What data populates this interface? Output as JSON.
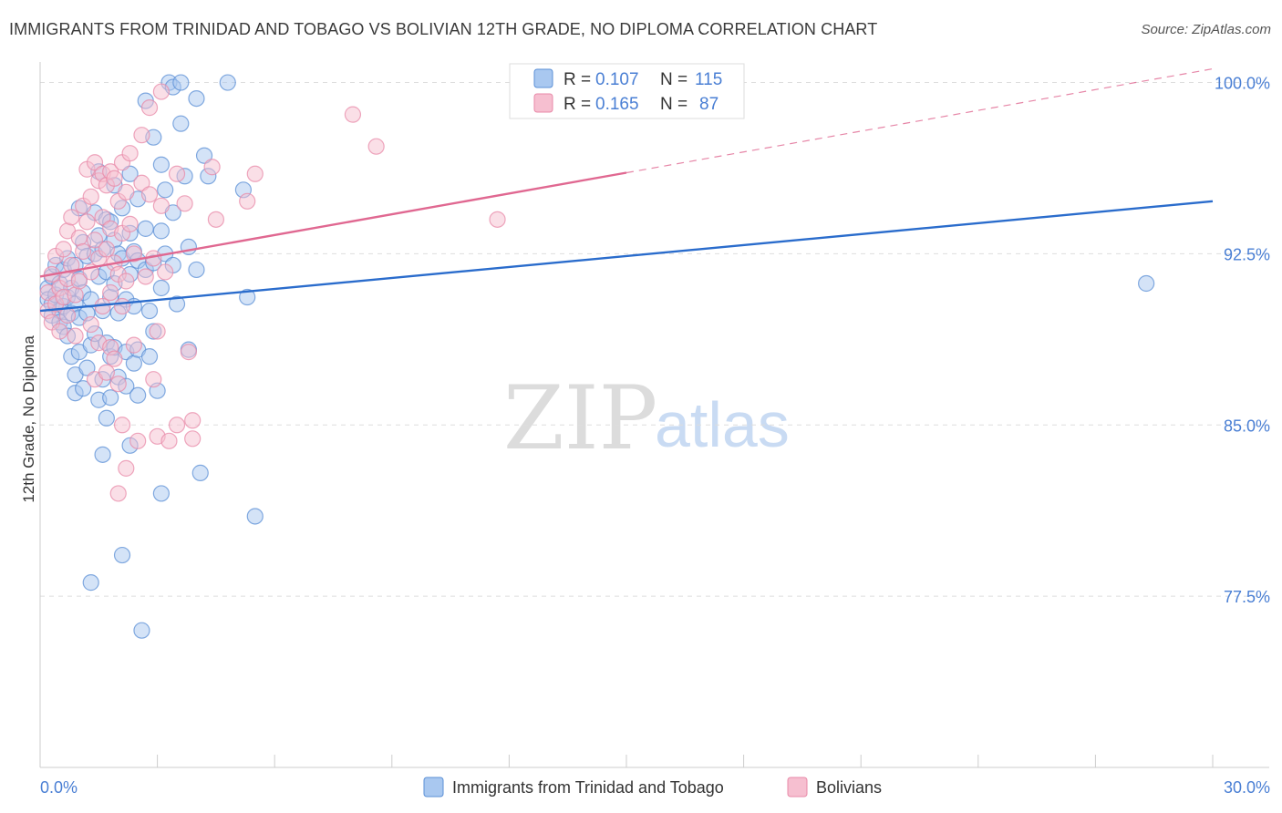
{
  "title": "IMMIGRANTS FROM TRINIDAD AND TOBAGO VS BOLIVIAN 12TH GRADE, NO DIPLOMA CORRELATION CHART",
  "source": "Source: ZipAtlas.com",
  "watermark": {
    "zip": "ZIP",
    "atlas": "atlas"
  },
  "colors": {
    "blue_fill": "#a9c8f0",
    "blue_stroke": "#5b8fd6",
    "blue_line": "#2a6ccc",
    "pink_fill": "#f6bfd0",
    "pink_stroke": "#e88aa8",
    "pink_line": "#e06891",
    "grid": "#dddddd",
    "tick_label": "#4a7fd4"
  },
  "legend": {
    "rows": [
      {
        "r_label": "R =",
        "r_value": "0.107",
        "n_label": "N =",
        "n_value": "115"
      },
      {
        "r_label": "R =",
        "r_value": "0.165",
        "n_label": "N =",
        "n_value": "87"
      }
    ]
  },
  "chart_data": {
    "type": "scatter",
    "title": "IMMIGRANTS FROM TRINIDAD AND TOBAGO VS BOLIVIAN 12TH GRADE, NO DIPLOMA CORRELATION CHART",
    "xlabel": "",
    "ylabel": "12th Grade, No Diploma",
    "xlim": [
      0,
      30
    ],
    "ylim": [
      70,
      101.3
    ],
    "x_tick_labels": [
      "0.0%",
      "30.0%"
    ],
    "y_ticks": [
      77.5,
      85.0,
      92.5,
      100.0
    ],
    "y_tick_labels": [
      "77.5%",
      "85.0%",
      "92.5%",
      "100.0%"
    ],
    "grid": true,
    "legend_position": "top-center",
    "series": [
      {
        "name": "Immigrants from Trinidad and Tobago",
        "color": "blue",
        "R": 0.107,
        "N": 115,
        "trend": {
          "x": [
            0,
            30
          ],
          "y": [
            90.0,
            94.8
          ],
          "dashed_from": null
        },
        "points": [
          [
            0.2,
            91.0
          ],
          [
            0.2,
            90.5
          ],
          [
            0.3,
            91.5
          ],
          [
            0.3,
            90.3
          ],
          [
            0.3,
            89.8
          ],
          [
            0.4,
            92.0
          ],
          [
            0.4,
            90.7
          ],
          [
            0.5,
            91.2
          ],
          [
            0.5,
            90.0
          ],
          [
            0.5,
            89.5
          ],
          [
            0.6,
            91.8
          ],
          [
            0.6,
            90.2
          ],
          [
            0.6,
            89.3
          ],
          [
            0.7,
            92.3
          ],
          [
            0.7,
            90.6
          ],
          [
            0.7,
            88.9
          ],
          [
            0.8,
            91.0
          ],
          [
            0.8,
            89.9
          ],
          [
            0.8,
            88.0
          ],
          [
            0.9,
            92.0
          ],
          [
            0.9,
            90.3
          ],
          [
            0.9,
            87.2
          ],
          [
            0.9,
            86.4
          ],
          [
            1.0,
            94.5
          ],
          [
            1.0,
            91.4
          ],
          [
            1.0,
            89.7
          ],
          [
            1.0,
            88.2
          ],
          [
            1.1,
            93.0
          ],
          [
            1.1,
            90.8
          ],
          [
            1.1,
            86.6
          ],
          [
            1.2,
            92.4
          ],
          [
            1.2,
            89.9
          ],
          [
            1.2,
            87.5
          ],
          [
            1.3,
            90.5
          ],
          [
            1.3,
            88.5
          ],
          [
            1.3,
            78.1
          ],
          [
            1.4,
            94.3
          ],
          [
            1.4,
            92.5
          ],
          [
            1.4,
            89.0
          ],
          [
            1.5,
            96.1
          ],
          [
            1.5,
            93.3
          ],
          [
            1.5,
            91.5
          ],
          [
            1.5,
            86.1
          ],
          [
            1.6,
            92.7
          ],
          [
            1.6,
            90.0
          ],
          [
            1.6,
            87.0
          ],
          [
            1.6,
            83.7
          ],
          [
            1.7,
            94.0
          ],
          [
            1.7,
            91.7
          ],
          [
            1.7,
            88.6
          ],
          [
            1.7,
            85.3
          ],
          [
            1.8,
            93.9
          ],
          [
            1.8,
            90.6
          ],
          [
            1.8,
            88.0
          ],
          [
            1.8,
            86.2
          ],
          [
            1.9,
            95.5
          ],
          [
            1.9,
            93.1
          ],
          [
            1.9,
            91.2
          ],
          [
            1.9,
            88.4
          ],
          [
            2.0,
            92.5
          ],
          [
            2.0,
            89.9
          ],
          [
            2.0,
            87.1
          ],
          [
            2.1,
            94.5
          ],
          [
            2.1,
            92.3
          ],
          [
            2.1,
            79.3
          ],
          [
            2.2,
            90.5
          ],
          [
            2.2,
            88.2
          ],
          [
            2.2,
            86.7
          ],
          [
            2.3,
            96.0
          ],
          [
            2.3,
            93.4
          ],
          [
            2.3,
            91.6
          ],
          [
            2.3,
            84.1
          ],
          [
            2.4,
            92.6
          ],
          [
            2.4,
            90.2
          ],
          [
            2.4,
            87.7
          ],
          [
            2.5,
            94.9
          ],
          [
            2.5,
            92.2
          ],
          [
            2.5,
            88.3
          ],
          [
            2.5,
            86.3
          ],
          [
            2.6,
            76.0
          ],
          [
            2.7,
            99.2
          ],
          [
            2.7,
            93.6
          ],
          [
            2.7,
            91.8
          ],
          [
            2.8,
            90.0
          ],
          [
            2.8,
            88.0
          ],
          [
            2.9,
            97.6
          ],
          [
            2.9,
            92.1
          ],
          [
            2.9,
            89.1
          ],
          [
            3.0,
            86.5
          ],
          [
            3.1,
            96.4
          ],
          [
            3.1,
            93.5
          ],
          [
            3.1,
            91.0
          ],
          [
            3.1,
            82.0
          ],
          [
            3.2,
            95.3
          ],
          [
            3.2,
            92.5
          ],
          [
            3.3,
            100.0
          ],
          [
            3.4,
            99.8
          ],
          [
            3.4,
            94.3
          ],
          [
            3.4,
            92.0
          ],
          [
            3.5,
            90.3
          ],
          [
            3.6,
            100.0
          ],
          [
            3.6,
            98.2
          ],
          [
            3.7,
            95.9
          ],
          [
            3.8,
            92.8
          ],
          [
            3.8,
            88.3
          ],
          [
            4.0,
            99.3
          ],
          [
            4.0,
            91.8
          ],
          [
            4.2,
            96.8
          ],
          [
            4.3,
            95.9
          ],
          [
            4.8,
            100.0
          ],
          [
            5.2,
            95.3
          ],
          [
            5.3,
            90.6
          ],
          [
            5.5,
            81.0
          ],
          [
            4.1,
            82.9
          ],
          [
            28.3,
            91.2
          ]
        ]
      },
      {
        "name": "Bolivians",
        "color": "pink",
        "R": 0.165,
        "N": 87,
        "trend": {
          "x": [
            0,
            30
          ],
          "y": [
            91.5,
            100.6
          ],
          "dashed_from": 15.0
        },
        "points": [
          [
            0.2,
            90.8
          ],
          [
            0.2,
            90.0
          ],
          [
            0.3,
            91.6
          ],
          [
            0.3,
            89.5
          ],
          [
            0.4,
            92.4
          ],
          [
            0.4,
            90.3
          ],
          [
            0.5,
            91.0
          ],
          [
            0.5,
            89.1
          ],
          [
            0.6,
            92.7
          ],
          [
            0.6,
            90.6
          ],
          [
            0.7,
            93.5
          ],
          [
            0.7,
            91.4
          ],
          [
            0.7,
            89.8
          ],
          [
            0.8,
            94.1
          ],
          [
            0.8,
            92.0
          ],
          [
            0.9,
            90.7
          ],
          [
            0.9,
            88.9
          ],
          [
            1.0,
            93.2
          ],
          [
            1.0,
            91.3
          ],
          [
            1.1,
            94.6
          ],
          [
            1.1,
            92.6
          ],
          [
            1.2,
            96.2
          ],
          [
            1.2,
            93.9
          ],
          [
            1.3,
            95.0
          ],
          [
            1.3,
            91.7
          ],
          [
            1.3,
            89.4
          ],
          [
            1.4,
            96.5
          ],
          [
            1.4,
            93.1
          ],
          [
            1.4,
            87.0
          ],
          [
            1.5,
            95.7
          ],
          [
            1.5,
            92.3
          ],
          [
            1.5,
            88.6
          ],
          [
            1.6,
            96.0
          ],
          [
            1.6,
            94.1
          ],
          [
            1.6,
            90.2
          ],
          [
            1.7,
            95.5
          ],
          [
            1.7,
            92.7
          ],
          [
            1.7,
            87.3
          ],
          [
            1.8,
            96.1
          ],
          [
            1.8,
            93.6
          ],
          [
            1.8,
            90.8
          ],
          [
            1.8,
            88.4
          ],
          [
            1.9,
            95.8
          ],
          [
            1.9,
            92.1
          ],
          [
            1.9,
            87.9
          ],
          [
            2.0,
            94.8
          ],
          [
            2.0,
            91.6
          ],
          [
            2.0,
            86.8
          ],
          [
            2.0,
            82.0
          ],
          [
            2.1,
            96.5
          ],
          [
            2.1,
            93.4
          ],
          [
            2.1,
            90.2
          ],
          [
            2.1,
            85.0
          ],
          [
            2.2,
            95.2
          ],
          [
            2.2,
            91.3
          ],
          [
            2.2,
            83.1
          ],
          [
            2.3,
            96.9
          ],
          [
            2.3,
            93.8
          ],
          [
            2.4,
            92.5
          ],
          [
            2.4,
            88.5
          ],
          [
            2.5,
            84.3
          ],
          [
            2.6,
            97.7
          ],
          [
            2.6,
            95.6
          ],
          [
            2.7,
            91.5
          ],
          [
            2.8,
            98.9
          ],
          [
            2.8,
            95.1
          ],
          [
            2.9,
            92.3
          ],
          [
            2.9,
            87.0
          ],
          [
            3.0,
            89.1
          ],
          [
            3.0,
            84.5
          ],
          [
            3.1,
            99.6
          ],
          [
            3.1,
            94.6
          ],
          [
            3.2,
            91.7
          ],
          [
            3.3,
            84.3
          ],
          [
            3.5,
            96.0
          ],
          [
            3.5,
            85.0
          ],
          [
            3.7,
            94.7
          ],
          [
            3.8,
            88.2
          ],
          [
            3.9,
            85.2
          ],
          [
            3.9,
            84.4
          ],
          [
            4.4,
            96.3
          ],
          [
            4.5,
            94.0
          ],
          [
            5.3,
            94.8
          ],
          [
            5.5,
            96.0
          ],
          [
            8.0,
            98.6
          ],
          [
            8.6,
            97.2
          ],
          [
            11.7,
            94.0
          ]
        ]
      }
    ]
  },
  "bottom_legend": {
    "items": [
      {
        "label": "Immigrants from Trinidad and Tobago"
      },
      {
        "label": "Bolivians"
      }
    ]
  }
}
